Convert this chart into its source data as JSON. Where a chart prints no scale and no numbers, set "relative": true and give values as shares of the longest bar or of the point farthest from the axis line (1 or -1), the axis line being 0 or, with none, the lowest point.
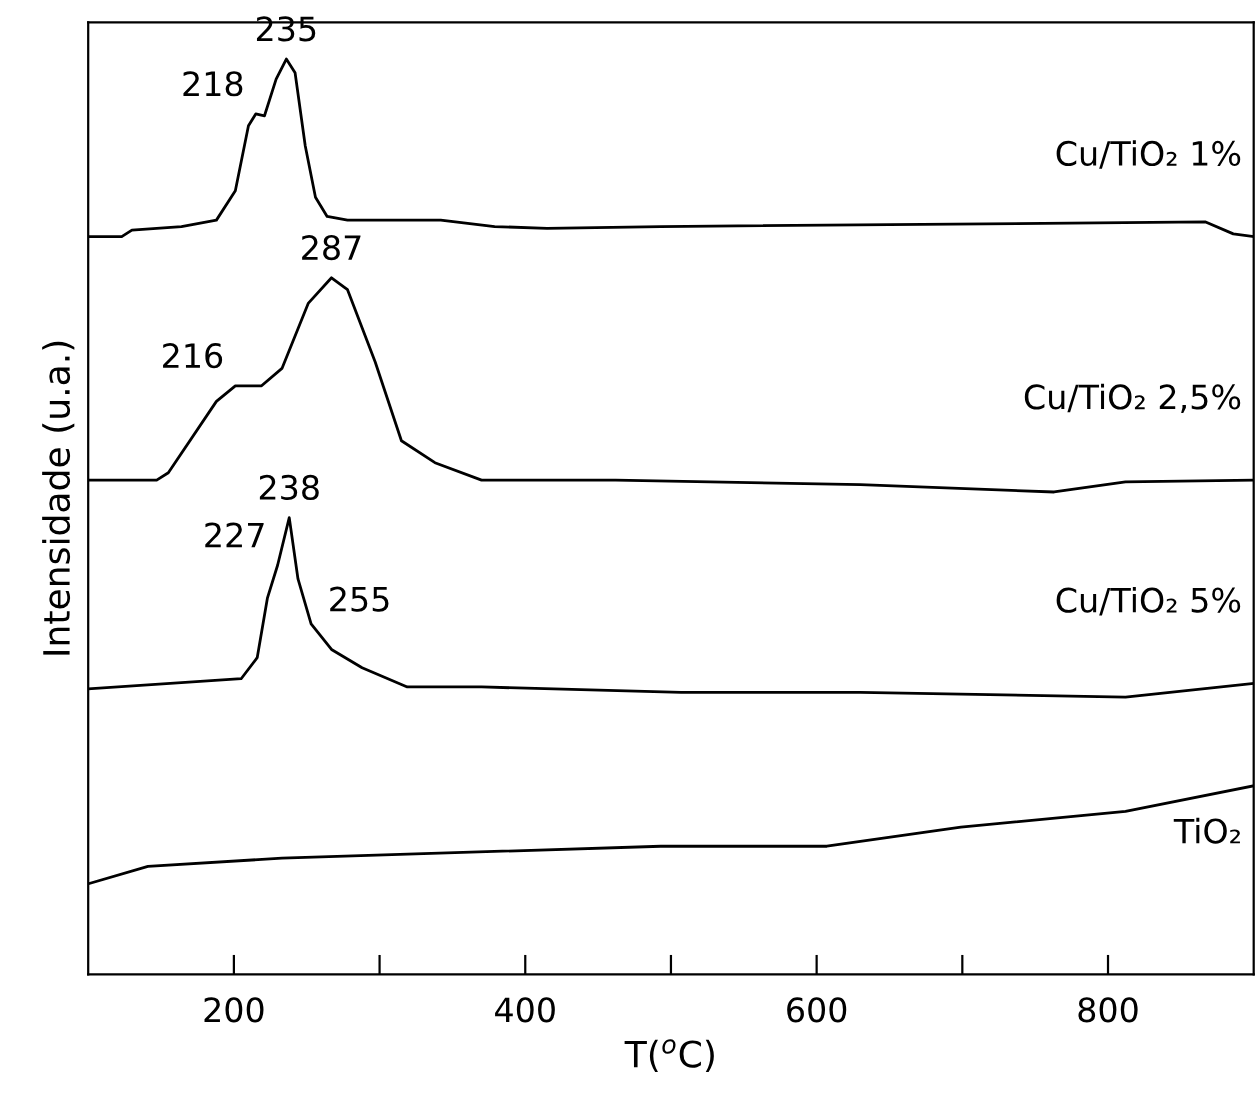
{
  "chart_data": {
    "type": "line",
    "relative": true,
    "xlabel": "T($^{o}$C)",
    "ylabel": "Intensidade (u.a.)",
    "xlim": [
      100,
      900
    ],
    "xticks": [
      200,
      {
        "value": 300,
        "label": null
      },
      400,
      {
        "value": 500,
        "label": null
      },
      600,
      {
        "value": 700,
        "label": null
      },
      800
    ],
    "grid": false,
    "legend": false,
    "marker": "none",
    "line_style": "solid",
    "series": [
      {
        "name": "Cu/TiO₂ 1%",
        "color": "#000000",
        "x": [
          100,
          123,
          130,
          164,
          188,
          201,
          210,
          215,
          221,
          229,
          236,
          242,
          249,
          256,
          264,
          278,
          342,
          379,
          415,
          493,
          867,
          886,
          900
        ],
        "values": [
          0.806,
          0.806,
          0.813,
          0.817,
          0.824,
          0.856,
          0.927,
          0.94,
          0.938,
          0.978,
          1.0,
          0.985,
          0.905,
          0.849,
          0.828,
          0.824,
          0.824,
          0.817,
          0.815,
          0.817,
          0.822,
          0.809,
          0.806
        ]
      },
      {
        "name": "Cu/TiO₂ 2,5%",
        "color": "#000000",
        "x": [
          100,
          147,
          155,
          188,
          201,
          219,
          233,
          251,
          267,
          278,
          297,
          315,
          338,
          370,
          462,
          630,
          763,
          812,
          900
        ],
        "values": [
          0.54,
          0.54,
          0.548,
          0.626,
          0.643,
          0.643,
          0.662,
          0.733,
          0.761,
          0.748,
          0.669,
          0.583,
          0.559,
          0.54,
          0.54,
          0.535,
          0.527,
          0.538,
          0.54
        ]
      },
      {
        "name": "Cu/TiO₂ 5%",
        "color": "#000000",
        "x": [
          100,
          205,
          216,
          223,
          230,
          238,
          244,
          253,
          267,
          288,
          319,
          370,
          507,
          630,
          812,
          900
        ],
        "values": [
          0.312,
          0.323,
          0.346,
          0.411,
          0.447,
          0.499,
          0.432,
          0.383,
          0.355,
          0.335,
          0.314,
          0.314,
          0.308,
          0.308,
          0.303,
          0.318
        ]
      },
      {
        "name": "TiO₂",
        "color": "#000000",
        "x": [
          100,
          141,
          233,
          493,
          607,
          699,
          812,
          900
        ],
        "values": [
          0.099,
          0.118,
          0.127,
          0.14,
          0.14,
          0.161,
          0.178,
          0.206
        ]
      }
    ],
    "annotations": [
      {
        "text": "218",
        "x": 215,
        "y": 0.94
      },
      {
        "text": "235",
        "x": 236,
        "y": 1.0
      },
      {
        "text": "216",
        "x": 201,
        "y": 0.643
      },
      {
        "text": "287",
        "x": 267,
        "y": 0.761
      },
      {
        "text": "238",
        "x": 238,
        "y": 0.499
      },
      {
        "text": "227",
        "x": 230,
        "y": 0.447
      },
      {
        "text": "255",
        "x": 253,
        "y": 0.383
      }
    ]
  }
}
